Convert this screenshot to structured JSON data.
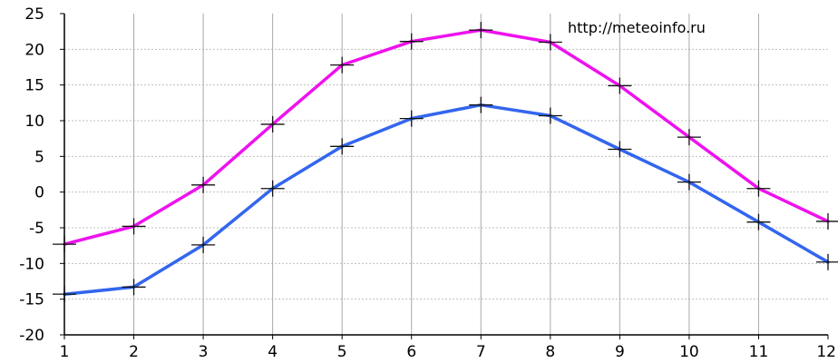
{
  "chart_data": {
    "type": "line",
    "x": [
      1,
      2,
      3,
      4,
      5,
      6,
      7,
      8,
      9,
      10,
      11,
      12
    ],
    "series": [
      {
        "color": "#ee11ee",
        "values": [
          -7.3,
          -4.8,
          1.0,
          9.5,
          17.8,
          21.1,
          22.7,
          21.0,
          14.9,
          7.7,
          0.5,
          -4.1
        ]
      },
      {
        "color": "#3366ee",
        "values": [
          -14.3,
          -13.3,
          -7.4,
          0.5,
          6.4,
          10.3,
          12.2,
          10.7,
          6.0,
          1.4,
          -4.2,
          -9.8
        ]
      }
    ],
    "xlim": [
      1,
      12
    ],
    "ylim": [
      -20,
      25
    ],
    "xticks": [
      "1",
      "2",
      "3",
      "4",
      "5",
      "6",
      "7",
      "8",
      "9",
      "10",
      "11",
      "12"
    ],
    "yticks": [
      "25",
      "20",
      "15",
      "10",
      "5",
      "0",
      "-5",
      "-10",
      "-15",
      "-20"
    ],
    "grid": true,
    "marker": "plus",
    "watermark": "http://meteoinfo.ru"
  }
}
